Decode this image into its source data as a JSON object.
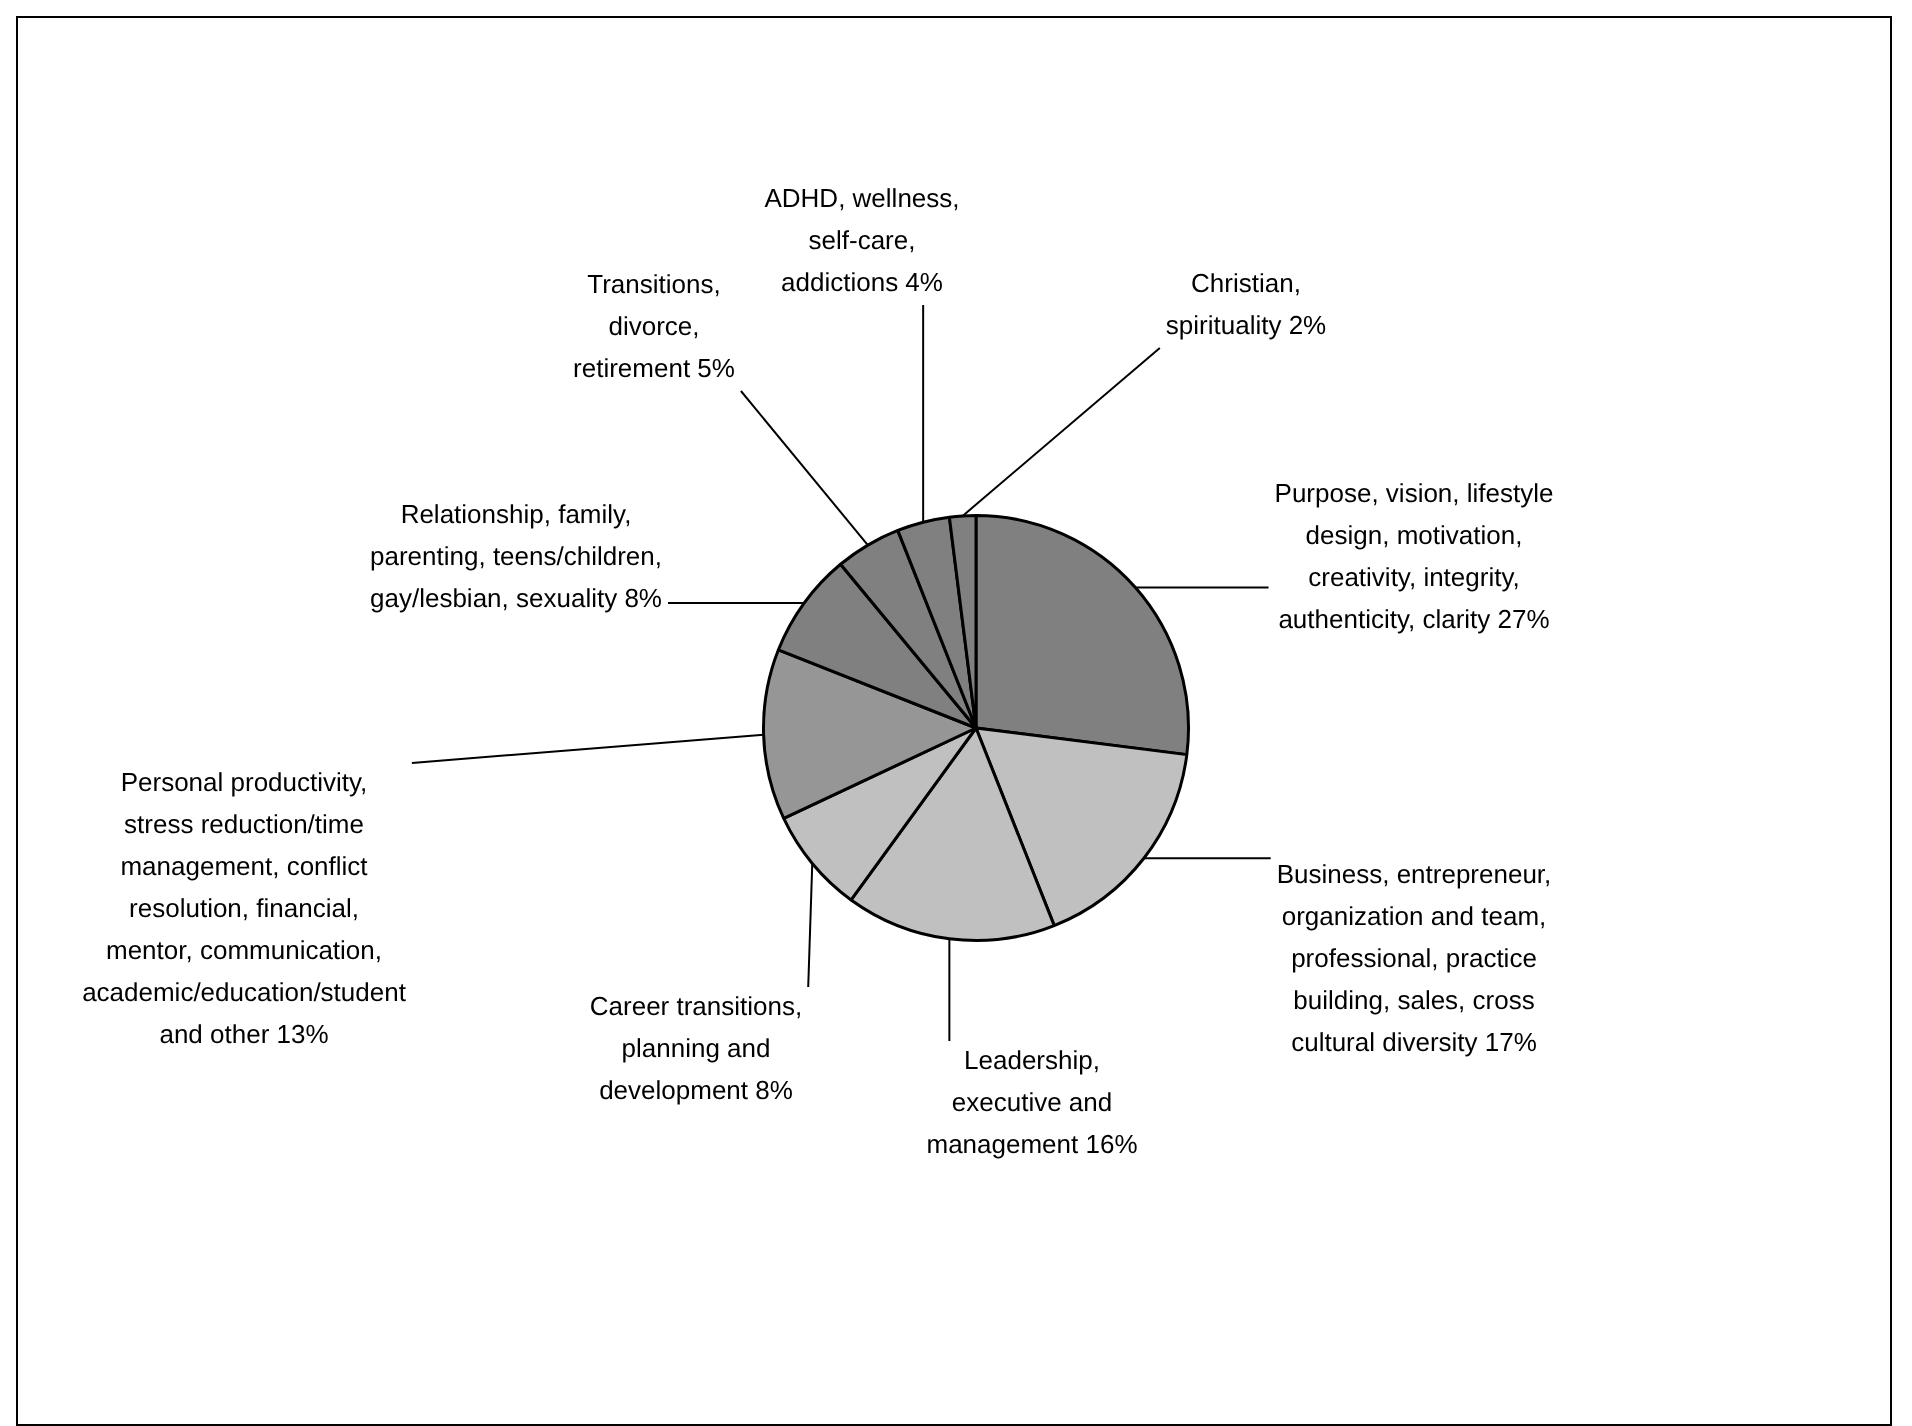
{
  "chart_data": {
    "type": "pie",
    "categories": [
      "Purpose, vision, lifestyle design, motivation, creativity, integrity, authenticity, clarity",
      "Business, entrepreneur, organization and team, professional, practice building, sales, cross cultural diversity",
      "Leadership, executive and management",
      "Career transitions, planning and development",
      "Personal productivity, stress reduction/time management, conflict resolution, financial, mentor, communication, academic/education/student and other",
      "Relationship, family, parenting, teens/children, gay/lesbian, sexuality",
      "Transitions, divorce, retirement",
      "ADHD, wellness, self-care, addictions",
      "Christian, spirituality"
    ],
    "values": [
      27,
      17,
      16,
      8,
      13,
      8,
      5,
      4,
      2
    ],
    "value_labels": [
      "27%",
      "17%",
      "16%",
      "8%",
      "13%",
      "8%",
      "5%",
      "4%",
      "2%"
    ],
    "colors": [
      "#808080",
      "#c0c0c0",
      "#c0c0c0",
      "#c0c0c0",
      "#969696",
      "#808080",
      "#808080",
      "#808080",
      "#808080"
    ],
    "legend": false
  }
}
